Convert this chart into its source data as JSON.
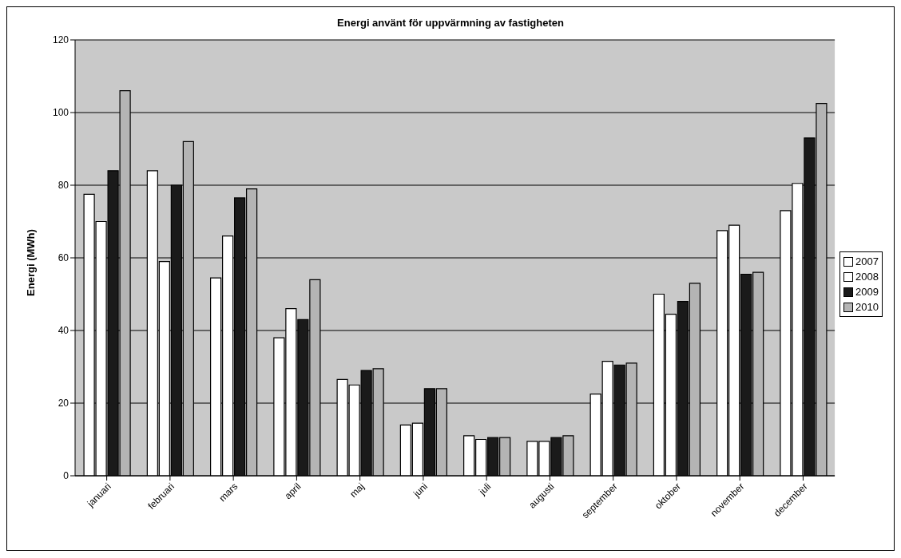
{
  "chart_data": {
    "type": "bar",
    "title": "Energi använt för uppvärmning av fastigheten",
    "ylabel": "Energi (MWh)",
    "categories": [
      "januari",
      "februari",
      "mars",
      "april",
      "maj",
      "juni",
      "juli",
      "augusti",
      "september",
      "oktober",
      "november",
      "december"
    ],
    "series": [
      {
        "name": "2007",
        "color": "#ffffff",
        "values": [
          77.5,
          84,
          54.5,
          38,
          26.5,
          14,
          11,
          9.5,
          22.5,
          50,
          67.5,
          73
        ]
      },
      {
        "name": "2008",
        "color": "#ffffff",
        "values": [
          70,
          59,
          66,
          46,
          25,
          14.5,
          10,
          9.5,
          31.5,
          44.5,
          69,
          80.5
        ]
      },
      {
        "name": "2009",
        "color": "#1a1a1a",
        "values": [
          84,
          80,
          76.5,
          43,
          29,
          24,
          10.5,
          10.5,
          30.5,
          48,
          55.5,
          93
        ]
      },
      {
        "name": "2010",
        "color": "#b4b4b4",
        "values": [
          106,
          92,
          79,
          54,
          29.5,
          24,
          10.5,
          11,
          31,
          53,
          56,
          102.5
        ]
      }
    ],
    "ylim": [
      0,
      120
    ],
    "yticks": [
      0,
      20,
      40,
      60,
      80,
      100,
      120
    ],
    "grid": "y",
    "legend": "right"
  }
}
